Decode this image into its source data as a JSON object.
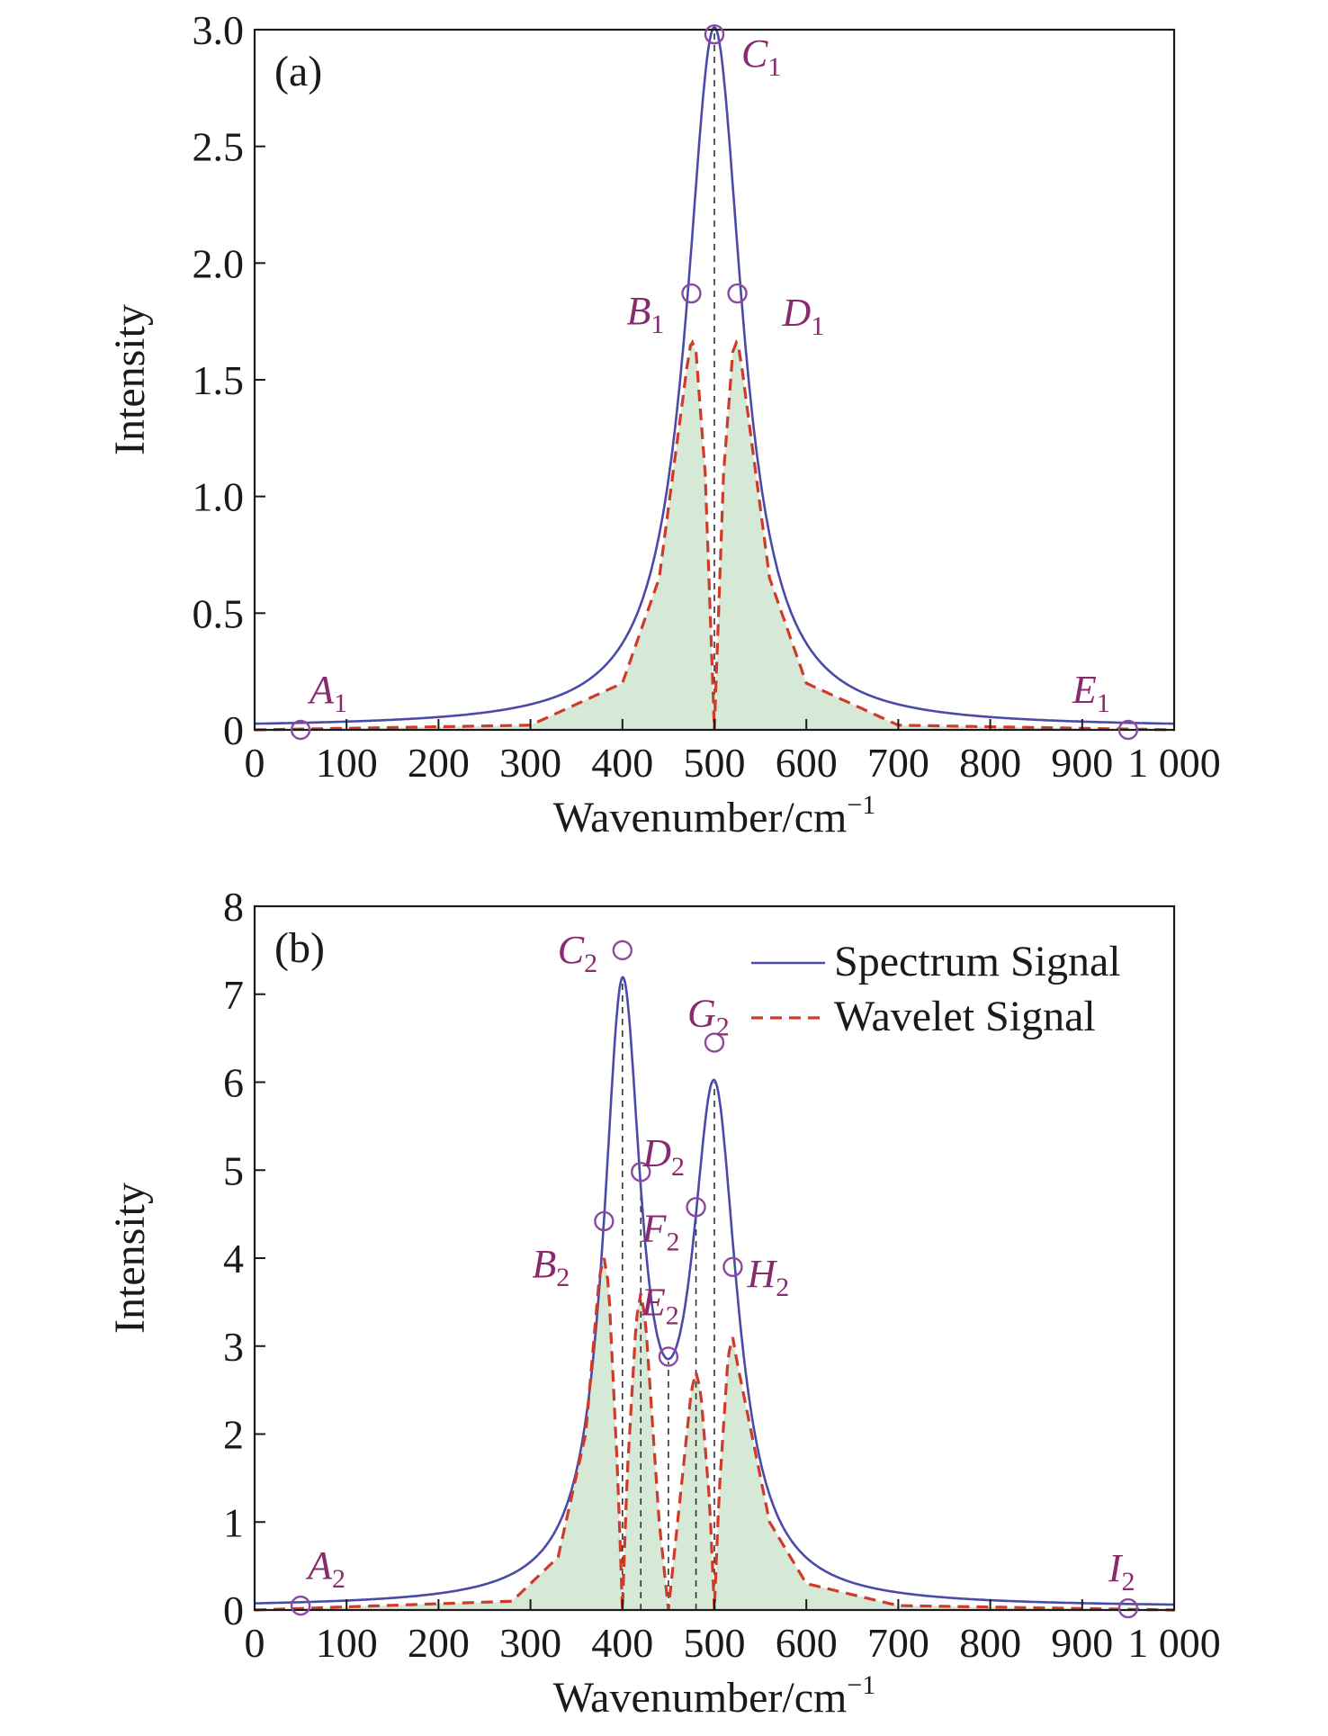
{
  "chart_data": [
    {
      "type": "line",
      "panel_label": "(a)",
      "xlabel": "Wavenumber/cm",
      "xlabel_sup": "−1",
      "ylabel": "Intensity",
      "xlim": [
        0,
        1000
      ],
      "ylim": [
        0,
        3
      ],
      "x_ticks": [
        0,
        100,
        200,
        300,
        400,
        500,
        600,
        700,
        800,
        900,
        1000
      ],
      "x_tick_labels": [
        "0",
        "100",
        "200",
        "300",
        "400",
        "500",
        "600",
        "700",
        "800",
        "900",
        "1 000"
      ],
      "y_ticks": [
        0,
        0.5,
        1.0,
        1.5,
        2.0,
        2.5,
        3.0
      ],
      "y_tick_labels": [
        "0",
        "0.5",
        "1.0",
        "1.5",
        "2.0",
        "2.5",
        "3.0"
      ],
      "spectrum_peaks": [
        {
          "center": 500,
          "amplitude": 3.0,
          "gamma": 37
        }
      ],
      "wavelet_curve": {
        "x": [
          0,
          300,
          400,
          440,
          470,
          475,
          480,
          490,
          500,
          510,
          520,
          525,
          530,
          560,
          600,
          700,
          1000
        ],
        "y": [
          0,
          0.02,
          0.2,
          0.65,
          1.55,
          1.67,
          1.62,
          1.1,
          0,
          1.1,
          1.62,
          1.67,
          1.55,
          0.65,
          0.2,
          0.02,
          0
        ]
      },
      "series": [
        {
          "name": "Spectrum Signal",
          "color": "#4a4aa8",
          "style": "solid"
        },
        {
          "name": "Wavelet Signal",
          "color": "#d03a2a",
          "style": "dashed"
        }
      ],
      "fill_color": "#d6e8d6",
      "vertical_markers": [
        500
      ],
      "points": [
        {
          "label": "A",
          "sub": "1",
          "x": 50,
          "y": 0.0
        },
        {
          "label": "B",
          "sub": "1",
          "x": 475,
          "y": 1.87
        },
        {
          "label": "C",
          "sub": "1",
          "x": 500,
          "y": 2.98
        },
        {
          "label": "D",
          "sub": "1",
          "x": 525,
          "y": 1.87
        },
        {
          "label": "E",
          "sub": "1",
          "x": 950,
          "y": 0.0
        }
      ]
    },
    {
      "type": "line",
      "panel_label": "(b)",
      "xlabel": "Wavenumber/cm",
      "xlabel_sup": "−1",
      "ylabel": "Intensity",
      "xlim": [
        0,
        1000
      ],
      "ylim": [
        0,
        8
      ],
      "x_ticks": [
        0,
        100,
        200,
        300,
        400,
        500,
        600,
        700,
        800,
        900,
        1000
      ],
      "x_tick_labels": [
        "0",
        "100",
        "200",
        "300",
        "400",
        "500",
        "600",
        "700",
        "800",
        "900",
        "1 000"
      ],
      "y_ticks": [
        0,
        1,
        2,
        3,
        4,
        5,
        6,
        7,
        8
      ],
      "y_tick_labels": [
        "0",
        "1",
        "2",
        "3",
        "4",
        "5",
        "6",
        "7",
        "8"
      ],
      "spectrum_peaks": [
        {
          "center": 400,
          "amplitude": 6.7,
          "gamma": 25
        },
        {
          "center": 500,
          "amplitude": 5.6,
          "gamma": 30
        }
      ],
      "wavelet_curve": {
        "x": [
          0,
          280,
          330,
          360,
          375,
          380,
          385,
          395,
          400,
          405,
          415,
          420,
          425,
          440,
          450,
          460,
          475,
          480,
          485,
          495,
          500,
          505,
          515,
          520,
          525,
          560,
          600,
          700,
          1000
        ],
        "y": [
          0,
          0.1,
          0.6,
          2.0,
          3.8,
          4.0,
          3.7,
          1.5,
          0,
          1.5,
          3.3,
          3.6,
          3.3,
          1.0,
          0,
          1.0,
          2.5,
          2.7,
          2.5,
          1.2,
          0,
          1.3,
          2.9,
          3.1,
          2.8,
          1.0,
          0.3,
          0.05,
          0
        ]
      },
      "series": [
        {
          "name": "Spectrum Signal",
          "color": "#4a4aa8",
          "style": "solid"
        },
        {
          "name": "Wavelet Signal",
          "color": "#d03a2a",
          "style": "dashed"
        }
      ],
      "legend": {
        "placement": "top-right",
        "entries": [
          "Spectrum Signal",
          "Wavelet Signal"
        ]
      },
      "fill_color": "#d6e8d6",
      "vertical_markers": [
        400,
        420,
        450,
        480,
        500
      ],
      "points": [
        {
          "label": "A",
          "sub": "2",
          "x": 50,
          "y": 0.05
        },
        {
          "label": "B",
          "sub": "2",
          "x": 380,
          "y": 4.42
        },
        {
          "label": "C",
          "sub": "2",
          "x": 400,
          "y": 7.5
        },
        {
          "label": "D",
          "sub": "2",
          "x": 420,
          "y": 4.98
        },
        {
          "label": "E",
          "sub": "2",
          "x": 450,
          "y": 2.88
        },
        {
          "label": "F",
          "sub": "2",
          "x": 480,
          "y": 4.58
        },
        {
          "label": "G",
          "sub": "2",
          "x": 500,
          "y": 6.45
        },
        {
          "label": "H",
          "sub": "2",
          "x": 520,
          "y": 3.9
        },
        {
          "label": "I",
          "sub": "2",
          "x": 950,
          "y": 0.02
        }
      ]
    }
  ]
}
